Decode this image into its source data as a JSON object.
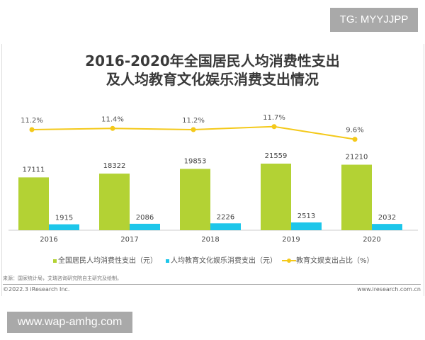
{
  "watermark_top": "TG: MYYJJPP",
  "watermark_bottom": "www.wap-amhg.com",
  "footer": {
    "source": "来源：国家统计局，艾瑞咨询研究院自主研究及绘制。",
    "copyright": "©2022.3 iResearch Inc.",
    "website": "www.iresearch.com.cn"
  },
  "colors": {
    "green": "#B3D234",
    "blue": "#1DC6EA",
    "yellow": "#F4C91A"
  },
  "chart_data": {
    "type": "bar+line",
    "title_line1": "2016-2020年全国居民人均消费性支出",
    "title_line2": "及人均教育文化娱乐消费支出情况",
    "categories": [
      "2016",
      "2017",
      "2018",
      "2019",
      "2020"
    ],
    "series": [
      {
        "name": "全国居民人均消费性支出（元）",
        "type": "bar",
        "values": [
          17111,
          18322,
          19853,
          21559,
          21210
        ],
        "labels": [
          "17111",
          "18322",
          "19853",
          "21559",
          "21210"
        ]
      },
      {
        "name": "人均教育文化娱乐消费支出（元）",
        "type": "bar",
        "values": [
          1915,
          2086,
          2226,
          2513,
          2032
        ],
        "labels": [
          "1915",
          "2086",
          "2226",
          "2513",
          "2032"
        ]
      },
      {
        "name": "教育文娱支出占比（%）",
        "type": "line",
        "values": [
          11.2,
          11.4,
          11.2,
          11.7,
          9.6
        ],
        "labels": [
          "11.2%",
          "11.4%",
          "11.2%",
          "11.7%",
          "9.6%"
        ]
      }
    ],
    "grid": false,
    "legend": "bottom"
  }
}
